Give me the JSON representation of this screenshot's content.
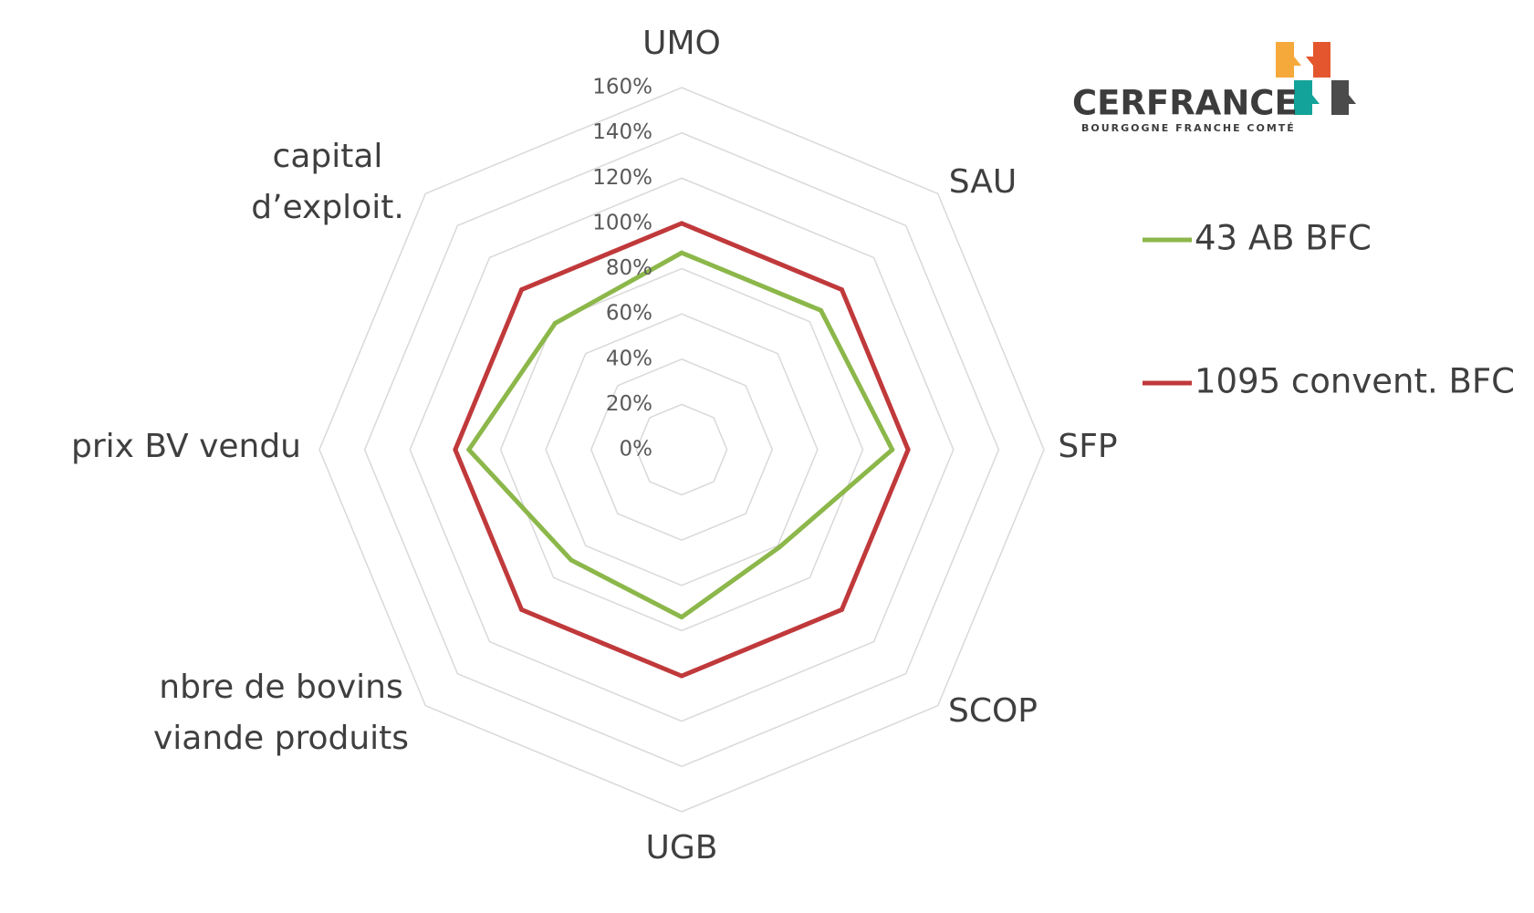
{
  "chart_data": {
    "type": "radar",
    "categories": [
      "UMO",
      "SAU",
      "SFP",
      "SCOP",
      "UGB",
      "nbre de bovins viande produits",
      "prix BV vendu",
      "capital d’exploit."
    ],
    "series": [
      {
        "name": "43 AB BFC",
        "color": "#8cb74a",
        "values": [
          87,
          87,
          93,
          61,
          74,
          69,
          94,
          79
        ]
      },
      {
        "name": "1095 convent. BFC",
        "color": "#c0393b",
        "values": [
          100,
          100,
          100,
          100,
          100,
          100,
          100,
          100
        ]
      }
    ],
    "ylim": [
      0,
      160
    ],
    "yticks": [
      {
        "value": 0,
        "label": "0%"
      },
      {
        "value": 20,
        "label": "20%"
      },
      {
        "value": 40,
        "label": "40%"
      },
      {
        "value": 60,
        "label": "60%"
      },
      {
        "value": 80,
        "label": "80%"
      },
      {
        "value": 100,
        "label": "100%"
      },
      {
        "value": 120,
        "label": "120%"
      },
      {
        "value": 140,
        "label": "140%"
      },
      {
        "value": 160,
        "label": "160%"
      }
    ],
    "grid": true,
    "legend": "right"
  },
  "logo": {
    "name": "CERFRANCE",
    "subtitle": "BOURGOGNE FRANCHE COMTÉ"
  }
}
